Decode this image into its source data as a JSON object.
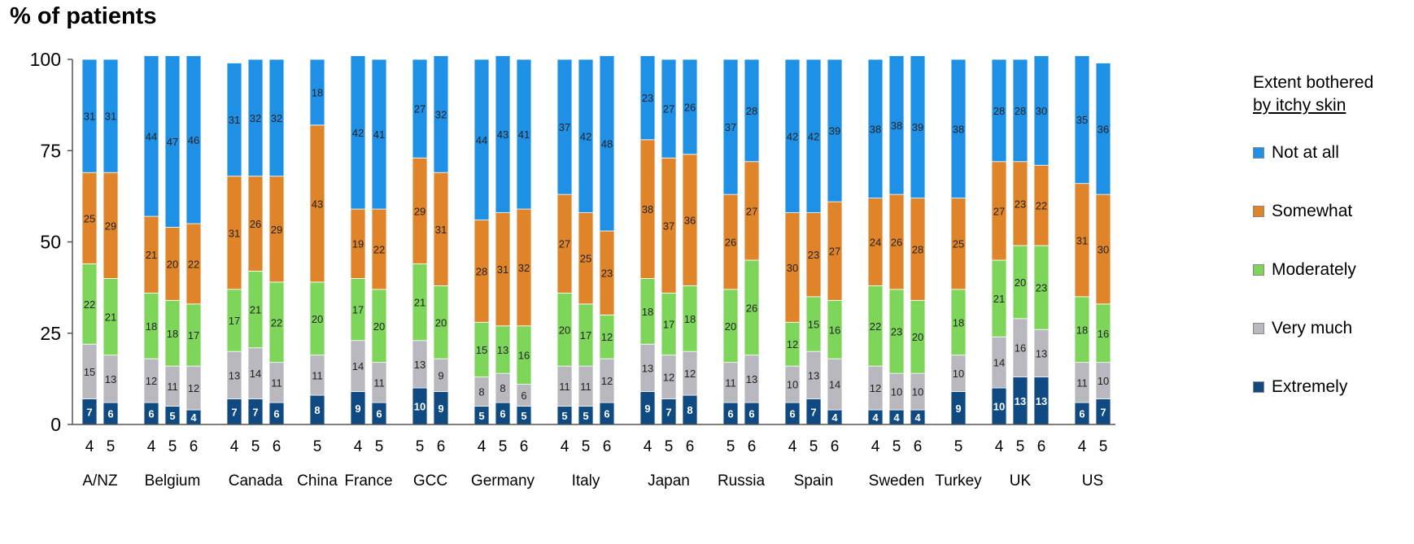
{
  "title": "% of patients",
  "legend": {
    "title_line1": "Extent bothered",
    "title_line2": "by itchy skin",
    "items": [
      {
        "label": "Not at all",
        "color": "#1e90e6"
      },
      {
        "label": "Somewhat",
        "color": "#e0842a"
      },
      {
        "label": "Moderately",
        "color": "#7dd65a"
      },
      {
        "label": "Very much",
        "color": "#b8b8be"
      },
      {
        "label": "Extremely",
        "color": "#0f4a82"
      }
    ]
  },
  "chart_data": {
    "type": "bar",
    "stacked": true,
    "ylim": [
      0,
      100
    ],
    "yticks": [
      0,
      25,
      50,
      75,
      100
    ],
    "xlabel": "",
    "ylabel": "",
    "series_order": [
      "Extremely",
      "Very much",
      "Moderately",
      "Somewhat",
      "Not at all"
    ],
    "colors": {
      "Extremely": "#0f4a82",
      "Very much": "#b8b8be",
      "Moderately": "#7dd65a",
      "Somewhat": "#e0842a",
      "Not at all": "#1e90e6"
    },
    "groups": [
      {
        "name": "A/NZ",
        "bars": [
          {
            "label": "4",
            "Extremely": 7,
            "Very much": 15,
            "Moderately": 22,
            "Somewhat": 25,
            "Not at all": 31
          },
          {
            "label": "5",
            "Extremely": 6,
            "Very much": 13,
            "Moderately": 21,
            "Somewhat": 29,
            "Not at all": 31
          }
        ]
      },
      {
        "name": "Belgium",
        "bars": [
          {
            "label": "4",
            "Extremely": 6,
            "Very much": 12,
            "Moderately": 18,
            "Somewhat": 21,
            "Not at all": 44
          },
          {
            "label": "5",
            "Extremely": 5,
            "Very much": 11,
            "Moderately": 18,
            "Somewhat": 20,
            "Not at all": 47
          },
          {
            "label": "6",
            "Extremely": 4,
            "Very much": 12,
            "Moderately": 17,
            "Somewhat": 22,
            "Not at all": 46
          }
        ]
      },
      {
        "name": "Canada",
        "bars": [
          {
            "label": "4",
            "Extremely": 7,
            "Very much": 13,
            "Moderately": 17,
            "Somewhat": 31,
            "Not at all": 31
          },
          {
            "label": "5",
            "Extremely": 7,
            "Very much": 14,
            "Moderately": 21,
            "Somewhat": 26,
            "Not at all": 32
          },
          {
            "label": "6",
            "Extremely": 6,
            "Very much": 11,
            "Moderately": 22,
            "Somewhat": 29,
            "Not at all": 32
          }
        ]
      },
      {
        "name": "China",
        "bars": [
          {
            "label": "5",
            "Extremely": 8,
            "Very much": 11,
            "Moderately": 20,
            "Somewhat": 43,
            "Not at all": 18
          }
        ]
      },
      {
        "name": "France",
        "bars": [
          {
            "label": "4",
            "Extremely": 9,
            "Very much": 14,
            "Moderately": 17,
            "Somewhat": 19,
            "Not at all": 42
          },
          {
            "label": "5",
            "Extremely": 6,
            "Very much": 11,
            "Moderately": 20,
            "Somewhat": 22,
            "Not at all": 41
          }
        ]
      },
      {
        "name": "GCC",
        "bars": [
          {
            "label": "5",
            "Extremely": 10,
            "Very much": 13,
            "Moderately": 21,
            "Somewhat": 29,
            "Not at all": 27
          },
          {
            "label": "6",
            "Extremely": 9,
            "Very much": 9,
            "Moderately": 20,
            "Somewhat": 31,
            "Not at all": 32
          }
        ]
      },
      {
        "name": "Germany",
        "bars": [
          {
            "label": "4",
            "Extremely": 5,
            "Very much": 8,
            "Moderately": 15,
            "Somewhat": 28,
            "Not at all": 44
          },
          {
            "label": "5",
            "Extremely": 6,
            "Very much": 8,
            "Moderately": 13,
            "Somewhat": 31,
            "Not at all": 43
          },
          {
            "label": "6",
            "Extremely": 5,
            "Very much": 6,
            "Moderately": 16,
            "Somewhat": 32,
            "Not at all": 41
          }
        ]
      },
      {
        "name": "Italy",
        "bars": [
          {
            "label": "4",
            "Extremely": 5,
            "Very much": 11,
            "Moderately": 20,
            "Somewhat": 27,
            "Not at all": 37
          },
          {
            "label": "5",
            "Extremely": 5,
            "Very much": 11,
            "Moderately": 17,
            "Somewhat": 25,
            "Not at all": 42
          },
          {
            "label": "6",
            "Extremely": 6,
            "Very much": 12,
            "Moderately": 12,
            "Somewhat": 23,
            "Not at all": 48
          }
        ]
      },
      {
        "name": "Japan",
        "bars": [
          {
            "label": "4",
            "Extremely": 9,
            "Very much": 13,
            "Moderately": 18,
            "Somewhat": 38,
            "Not at all": 23
          },
          {
            "label": "5",
            "Extremely": 7,
            "Very much": 12,
            "Moderately": 17,
            "Somewhat": 37,
            "Not at all": 27
          },
          {
            "label": "6",
            "Extremely": 8,
            "Very much": 12,
            "Moderately": 18,
            "Somewhat": 36,
            "Not at all": 26
          }
        ]
      },
      {
        "name": "Russia",
        "bars": [
          {
            "label": "5",
            "Extremely": 6,
            "Very much": 11,
            "Moderately": 20,
            "Somewhat": 26,
            "Not at all": 37
          },
          {
            "label": "6",
            "Extremely": 6,
            "Very much": 13,
            "Moderately": 26,
            "Somewhat": 27,
            "Not at all": 28
          }
        ]
      },
      {
        "name": "Spain",
        "bars": [
          {
            "label": "4",
            "Extremely": 6,
            "Very much": 10,
            "Moderately": 12,
            "Somewhat": 30,
            "Not at all": 42
          },
          {
            "label": "5",
            "Extremely": 7,
            "Very much": 13,
            "Moderately": 15,
            "Somewhat": 23,
            "Not at all": 42
          },
          {
            "label": "6",
            "Extremely": 4,
            "Very much": 14,
            "Moderately": 16,
            "Somewhat": 27,
            "Not at all": 39
          }
        ]
      },
      {
        "name": "Sweden",
        "bars": [
          {
            "label": "4",
            "Extremely": 4,
            "Very much": 12,
            "Moderately": 22,
            "Somewhat": 24,
            "Not at all": 38
          },
          {
            "label": "5",
            "Extremely": 4,
            "Very much": 10,
            "Moderately": 23,
            "Somewhat": 26,
            "Not at all": 38
          },
          {
            "label": "6",
            "Extremely": 4,
            "Very much": 10,
            "Moderately": 20,
            "Somewhat": 28,
            "Not at all": 39
          }
        ]
      },
      {
        "name": "Turkey",
        "bars": [
          {
            "label": "5",
            "Extremely": 9,
            "Very much": 10,
            "Moderately": 18,
            "Somewhat": 25,
            "Not at all": 38
          }
        ]
      },
      {
        "name": "UK",
        "bars": [
          {
            "label": "4",
            "Extremely": 10,
            "Very much": 14,
            "Moderately": 21,
            "Somewhat": 27,
            "Not at all": 28
          },
          {
            "label": "5",
            "Extremely": 13,
            "Very much": 16,
            "Moderately": 20,
            "Somewhat": 23,
            "Not at all": 28
          },
          {
            "label": "6",
            "Extremely": 13,
            "Very much": 13,
            "Moderately": 23,
            "Somewhat": 22,
            "Not at all": 30
          }
        ]
      },
      {
        "name": "US",
        "bars": [
          {
            "label": "4",
            "Extremely": 6,
            "Very much": 11,
            "Moderately": 18,
            "Somewhat": 31,
            "Not at all": 35
          },
          {
            "label": "5",
            "Extremely": 7,
            "Very much": 10,
            "Moderately": 16,
            "Somewhat": 30,
            "Not at all": 36
          }
        ]
      }
    ]
  }
}
